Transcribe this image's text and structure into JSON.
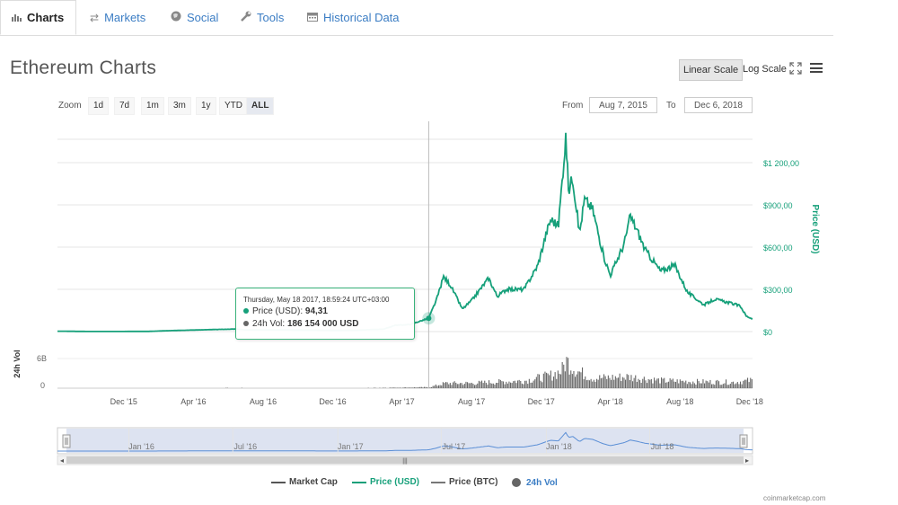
{
  "tabs": [
    {
      "label": "Charts",
      "icon": "bar-chart-icon"
    },
    {
      "label": "Markets",
      "icon": "exchange-arrows-icon"
    },
    {
      "label": "Social",
      "icon": "globe-icon"
    },
    {
      "label": "Tools",
      "icon": "wrench-icon"
    },
    {
      "label": "Historical Data",
      "icon": "calendar-icon"
    }
  ],
  "page_title": "Ethereum Charts",
  "scale": {
    "linear": "Linear Scale",
    "log": "Log Scale",
    "selected": "Linear Scale"
  },
  "zoom": {
    "label": "Zoom",
    "options": [
      "1d",
      "7d",
      "1m",
      "3m",
      "1y",
      "YTD",
      "ALL"
    ],
    "selected": "ALL"
  },
  "range": {
    "from_label": "From",
    "from_value": "Aug 7, 2015",
    "to_label": "To",
    "to_value": "Dec 6, 2018"
  },
  "tooltip": {
    "header": "Thursday, May 18 2017, 18:59:24 UTC+03:00",
    "price_label": "Price (USD):",
    "price_value": "94,31",
    "vol_label": "24h Vol:",
    "vol_value": "186 154 000 USD"
  },
  "legend": [
    {
      "label": "Market Cap",
      "color": "#555555"
    },
    {
      "label": "Price (USD)",
      "color": "#16a07a"
    },
    {
      "label": "Price (BTC)",
      "color": "#777777"
    },
    {
      "label": "24h Vol",
      "color": "#666666"
    }
  ],
  "credit": "coinmarketcap.com",
  "colors": {
    "price": "#16a07a",
    "volume": "#666666",
    "navigator_fill": "#d5dcee",
    "crosshair": "#bbbbbb"
  },
  "chart_data": {
    "type": "line",
    "y_axis_title": "Price (USD)",
    "y_ticks": [
      "$0",
      "$300,00",
      "$600,00",
      "$900,00",
      "$1 200,00"
    ],
    "ylim": [
      0,
      1200
    ],
    "vol_axis_title": "24h Vol",
    "vol_ticks": [
      "0",
      "6B"
    ],
    "x_ticks": [
      "Dec '15",
      "Apr '16",
      "Aug '16",
      "Dec '16",
      "Apr '17",
      "Aug '17",
      "Dec '17",
      "Apr '18",
      "Aug '18",
      "Dec '18"
    ],
    "navigator_ticks": [
      "Jan '16",
      "Jul '16",
      "Jan '17",
      "Jul '17",
      "Jan '18",
      "Jul '18"
    ],
    "price_series": {
      "name": "Price (USD)",
      "points": [
        [
          "2015-08-07",
          2.8
        ],
        [
          "2015-10-01",
          0.7
        ],
        [
          "2015-12-01",
          0.9
        ],
        [
          "2016-01-15",
          1.5
        ],
        [
          "2016-03-01",
          8
        ],
        [
          "2016-04-01",
          11
        ],
        [
          "2016-06-15",
          18
        ],
        [
          "2016-07-01",
          12
        ],
        [
          "2016-09-01",
          12
        ],
        [
          "2016-11-01",
          10
        ],
        [
          "2016-12-01",
          8
        ],
        [
          "2017-01-15",
          10
        ],
        [
          "2017-03-01",
          18
        ],
        [
          "2017-03-20",
          45
        ],
        [
          "2017-04-15",
          50
        ],
        [
          "2017-05-18",
          94.31
        ],
        [
          "2017-06-01",
          230
        ],
        [
          "2017-06-13",
          390
        ],
        [
          "2017-06-25",
          330
        ],
        [
          "2017-07-16",
          160
        ],
        [
          "2017-08-01",
          220
        ],
        [
          "2017-08-31",
          380
        ],
        [
          "2017-09-15",
          250
        ],
        [
          "2017-10-01",
          300
        ],
        [
          "2017-11-01",
          300
        ],
        [
          "2017-11-25",
          470
        ],
        [
          "2017-12-10",
          700
        ],
        [
          "2017-12-18",
          800
        ],
        [
          "2017-12-31",
          750
        ],
        [
          "2018-01-13",
          1380
        ],
        [
          "2018-01-18",
          1000
        ],
        [
          "2018-01-25",
          1100
        ],
        [
          "2018-02-06",
          700
        ],
        [
          "2018-02-15",
          940
        ],
        [
          "2018-03-01",
          870
        ],
        [
          "2018-03-20",
          540
        ],
        [
          "2018-04-01",
          400
        ],
        [
          "2018-04-25",
          620
        ],
        [
          "2018-05-06",
          820
        ],
        [
          "2018-05-20",
          700
        ],
        [
          "2018-06-01",
          580
        ],
        [
          "2018-06-28",
          430
        ],
        [
          "2018-07-23",
          470
        ],
        [
          "2018-08-14",
          280
        ],
        [
          "2018-09-12",
          190
        ],
        [
          "2018-10-01",
          230
        ],
        [
          "2018-10-31",
          200
        ],
        [
          "2018-11-15",
          180
        ],
        [
          "2018-11-25",
          110
        ],
        [
          "2018-12-06",
          90
        ]
      ]
    },
    "volume_series": {
      "name": "24h Vol",
      "unit": "USD",
      "points": [
        [
          "2015-08-07",
          0.002
        ],
        [
          "2016-06-15",
          0.06
        ],
        [
          "2017-01-01",
          0.02
        ],
        [
          "2017-05-18",
          0.186
        ],
        [
          "2017-06-15",
          1.0
        ],
        [
          "2017-08-01",
          1.0
        ],
        [
          "2017-09-01",
          1.2
        ],
        [
          "2017-11-01",
          1.5
        ],
        [
          "2017-12-15",
          2.5
        ],
        [
          "2018-01-05",
          3.5
        ],
        [
          "2018-01-13",
          5.5
        ],
        [
          "2018-02-01",
          3.5
        ],
        [
          "2018-03-01",
          2.0
        ],
        [
          "2018-05-01",
          2.3
        ],
        [
          "2018-07-01",
          1.5
        ],
        [
          "2018-09-01",
          1.3
        ],
        [
          "2018-11-01",
          1.2
        ],
        [
          "2018-12-06",
          1.6
        ]
      ]
    },
    "grid": true,
    "legend_position": "bottom"
  }
}
